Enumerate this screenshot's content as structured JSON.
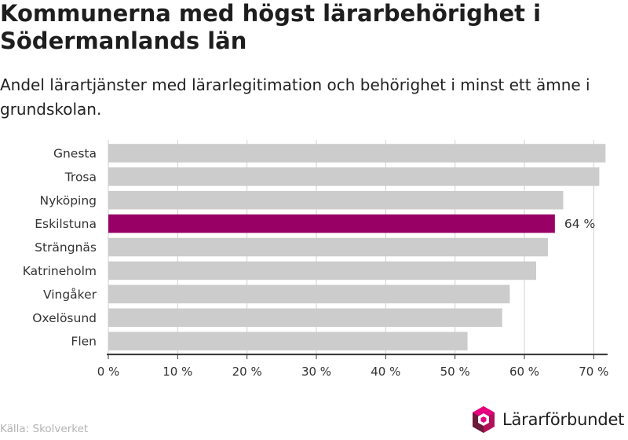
{
  "chart_data": {
    "type": "bar",
    "orientation": "horizontal",
    "title": "Kommunerna med högst lärarbehörighet i Södermanlands län",
    "subtitle": "Andel lärartjänster med lärarlegitimation och behörighet i minst ett ämne i grundskolan.",
    "categories": [
      "Gnesta",
      "Trosa",
      "Nyköping",
      "Eskilstuna",
      "Strängnäs",
      "Katrineholm",
      "Vingåker",
      "Oxelösund",
      "Flen"
    ],
    "values": [
      71.7,
      70.8,
      65.6,
      64.4,
      63.4,
      61.7,
      57.9,
      56.8,
      51.8
    ],
    "highlight": {
      "category": "Eskilstuna",
      "label": "64 %"
    },
    "xlim": [
      0,
      72
    ],
    "x_ticks": [
      0,
      10,
      20,
      30,
      40,
      50,
      60,
      70
    ],
    "x_tick_labels": [
      "0 %",
      "10 %",
      "20 %",
      "30 %",
      "40 %",
      "50 %",
      "60 %",
      "70 %"
    ],
    "grid": true,
    "colors": {
      "default_bar": "#cccccc",
      "highlight_bar": "#990066",
      "gridline": "#d0d0d0",
      "axis": "#333333"
    }
  },
  "footer": {
    "source": "Källa: Skolverket",
    "logo_text": "Lärarförbundet"
  },
  "logo": {
    "icon": "hexagon-cube-icon",
    "colors": [
      "#6b1b3a",
      "#e6007e",
      "#b3105a"
    ]
  }
}
